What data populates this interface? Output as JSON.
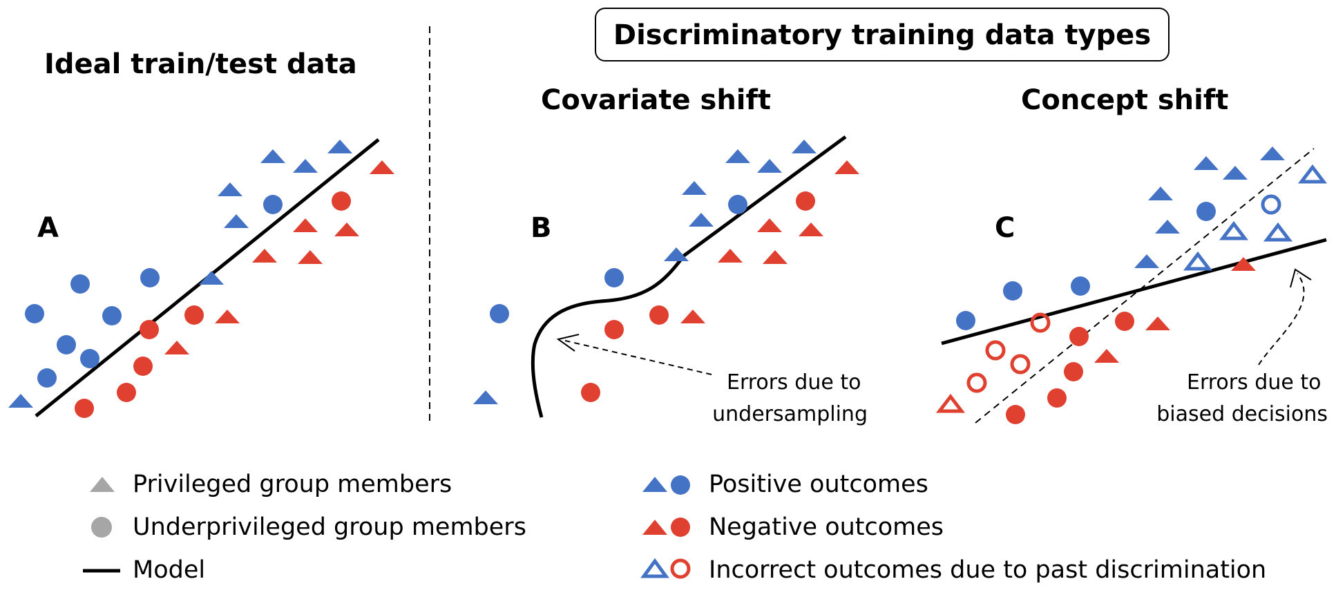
{
  "header": {
    "title": "Discriminatory training data types"
  },
  "panels": [
    {
      "id": "A",
      "label": "A",
      "title": "Ideal train/test data"
    },
    {
      "id": "B",
      "label": "B",
      "title": "Covariate shift",
      "annotation": [
        "Errors due to",
        "undersampling"
      ]
    },
    {
      "id": "C",
      "label": "C",
      "title": "Concept shift",
      "annotation": [
        "Errors due to",
        "biased decisions"
      ]
    }
  ],
  "legend": {
    "left": [
      "Privileged group members",
      "Underprivileged group members",
      "Model"
    ],
    "right": [
      "Positive outcomes",
      "Negative outcomes",
      "Incorrect outcomes due to past discrimination"
    ]
  },
  "colors": {
    "positive": "#4472C4",
    "negative": "#E0402F",
    "neutral": "#A6A6A6",
    "line": "#000000"
  },
  "icons": {
    "privileged": "triangle-icon",
    "underprivileged": "circle-icon",
    "model": "line-icon",
    "incorrect": "hollow-marker-icon"
  }
}
